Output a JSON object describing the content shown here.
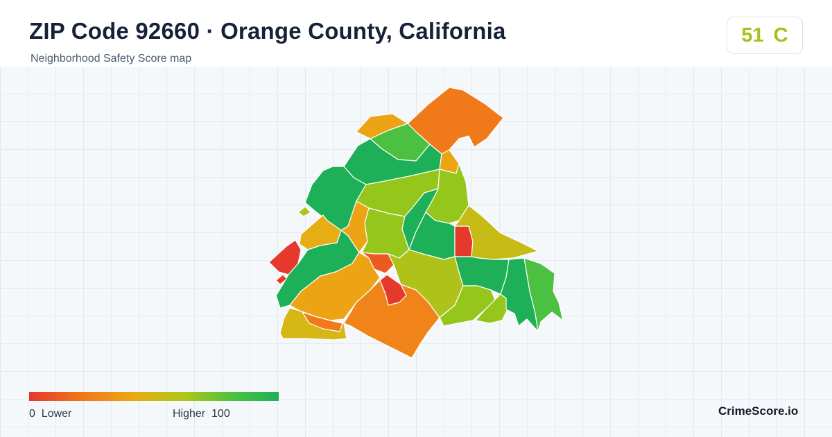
{
  "header": {
    "title": "ZIP Code 92660 · Orange County, California",
    "subtitle": "Neighborhood Safety Score map"
  },
  "score": {
    "value": "51",
    "grade": "C",
    "color": "#a8c01a"
  },
  "legend": {
    "min": "0",
    "min_label": "Lower",
    "max_label": "Higher",
    "max": "100",
    "low_color": "#e4392b",
    "high_color": "#1db058"
  },
  "brand": "CrimeScore.io",
  "palette": {
    "red": "#e4392b",
    "red_orange": "#ec5a22",
    "orange": "#f07a1a",
    "amber": "#eca415",
    "yellow_olive": "#d6b713",
    "olive": "#aec21a",
    "yellow_green": "#95c61b",
    "green": "#4cc040",
    "dark_green": "#1db058"
  }
}
